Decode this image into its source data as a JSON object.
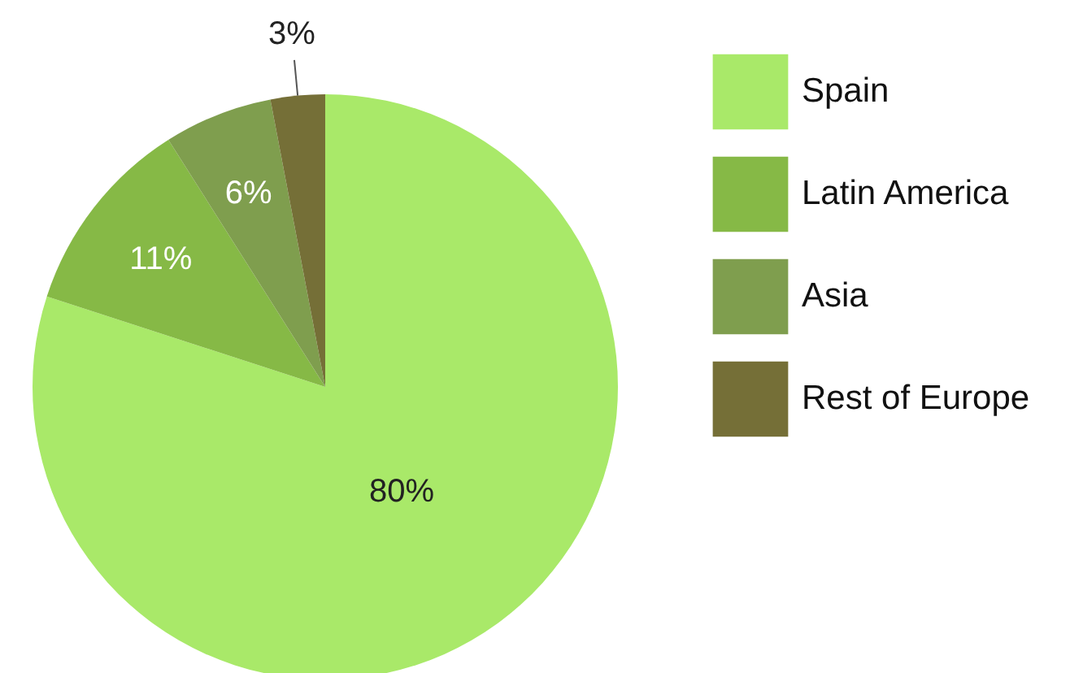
{
  "chart_data": {
    "type": "pie",
    "categories": [
      "Spain",
      "Latin America",
      "Asia",
      "Rest of Europe"
    ],
    "values": [
      80,
      11,
      6,
      3
    ],
    "colors": [
      "#a9e969",
      "#86b946",
      "#7f9e4e",
      "#756f37"
    ],
    "value_labels": [
      "80%",
      "11%",
      "6%",
      "3%"
    ],
    "legend": "top right"
  }
}
